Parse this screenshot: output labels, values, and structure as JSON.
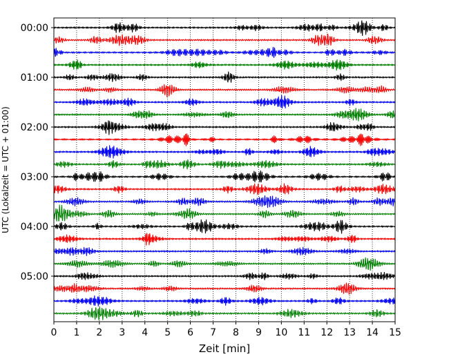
{
  "chart_data": {
    "type": "line",
    "xlabel": "Zeit  [min]",
    "ylabel": "UTC (Lokalzeit = UTC + 01:00)",
    "xlim": [
      0,
      15
    ],
    "x_ticks": [
      "0",
      "1",
      "2",
      "3",
      "4",
      "5",
      "6",
      "7",
      "8",
      "9",
      "10",
      "11",
      "12",
      "13",
      "14",
      "15"
    ],
    "y_tick_labels": [
      "00:00",
      "01:00",
      "02:00",
      "03:00",
      "04:00",
      "05:00"
    ],
    "traces_per_hour": 4,
    "trace_minutes": 15,
    "trace_colors": [
      "#000000",
      "#ff0000",
      "#0000ff",
      "#008000"
    ],
    "grid": "vertical dotted lines at each minute",
    "trace_start_times": [
      "00:00",
      "00:15",
      "00:30",
      "00:45",
      "01:00",
      "01:15",
      "01:30",
      "01:45",
      "02:00",
      "02:15",
      "02:30",
      "02:45",
      "03:00",
      "03:15",
      "03:30",
      "03:45",
      "04:00",
      "04:15",
      "04:30",
      "04:45",
      "05:00",
      "05:15",
      "05:30",
      "05:45"
    ]
  }
}
